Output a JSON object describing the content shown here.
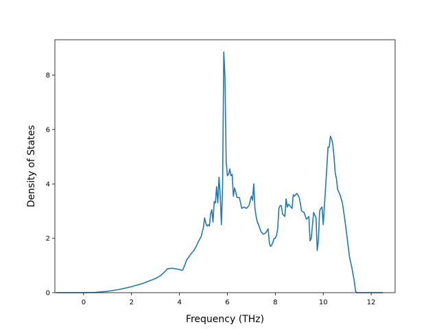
{
  "chart_data": {
    "type": "line",
    "title": "",
    "xlabel": "Frequency (THz)",
    "ylabel": "Density of States",
    "xlim": [
      -1.2,
      13.0
    ],
    "ylim": [
      0,
      9.3
    ],
    "xticks": [
      0,
      2,
      4,
      6,
      8,
      10,
      12
    ],
    "yticks": [
      0,
      2,
      4,
      6,
      8
    ],
    "grid": false,
    "legend": "none",
    "line_color": "#1f77b4",
    "series": [
      {
        "x": [
          -1.15,
          -0.5,
          0.0,
          0.5,
          1.0,
          1.5,
          2.0,
          2.5,
          3.0,
          3.2,
          3.4,
          3.5,
          3.7,
          3.9,
          4.0,
          4.1,
          4.15,
          4.3,
          4.5,
          4.6,
          4.7,
          4.75,
          4.8,
          4.9,
          5.0,
          5.05,
          5.1,
          5.15,
          5.2,
          5.25,
          5.3,
          5.35,
          5.4,
          5.45,
          5.5,
          5.55,
          5.6,
          5.65,
          5.7,
          5.75,
          5.8,
          5.85,
          5.9,
          5.95,
          6.0,
          6.05,
          6.1,
          6.15,
          6.2,
          6.25,
          6.3,
          6.35,
          6.4,
          6.5,
          6.6,
          6.7,
          6.8,
          6.9,
          7.0,
          7.05,
          7.1,
          7.15,
          7.2,
          7.25,
          7.3,
          7.4,
          7.5,
          7.6,
          7.7,
          7.75,
          7.8,
          7.85,
          7.9,
          7.95,
          8.0,
          8.05,
          8.1,
          8.15,
          8.2,
          8.25,
          8.3,
          8.4,
          8.45,
          8.5,
          8.55,
          8.6,
          8.7,
          8.75,
          8.8,
          8.9,
          9.0,
          9.1,
          9.2,
          9.3,
          9.4,
          9.45,
          9.5,
          9.6,
          9.7,
          9.75,
          9.8,
          9.85,
          9.9,
          9.95,
          10.0,
          10.05,
          10.1,
          10.15,
          10.2,
          10.25,
          10.3,
          10.35,
          10.4,
          10.45,
          10.5,
          10.55,
          10.6,
          10.65,
          10.7,
          10.8,
          10.9,
          11.0,
          11.1,
          11.2,
          11.3,
          11.35,
          11.4,
          11.45,
          11.5,
          12.0,
          12.5
        ],
        "y": [
          0,
          0,
          0,
          0.01,
          0.05,
          0.12,
          0.22,
          0.35,
          0.52,
          0.62,
          0.78,
          0.88,
          0.9,
          0.87,
          0.85,
          0.82,
          0.85,
          1.2,
          1.45,
          1.55,
          1.7,
          1.8,
          1.9,
          2.05,
          2.4,
          2.75,
          2.55,
          2.45,
          2.5,
          2.45,
          2.9,
          3.05,
          2.6,
          3.35,
          3.3,
          3.9,
          3.3,
          4.25,
          3.6,
          2.5,
          3.9,
          8.85,
          7.9,
          4.8,
          4.3,
          4.35,
          4.55,
          4.3,
          4.35,
          3.55,
          3.85,
          3.7,
          3.5,
          3.5,
          3.1,
          3.15,
          3.1,
          3.2,
          3.55,
          3.4,
          4.0,
          3.1,
          2.8,
          2.6,
          2.5,
          2.25,
          2.15,
          2.2,
          2.35,
          1.85,
          1.7,
          1.75,
          1.85,
          2.0,
          2.0,
          2.1,
          2.35,
          3.1,
          3.2,
          3.2,
          2.9,
          2.8,
          3.45,
          3.15,
          3.25,
          3.2,
          3.1,
          3.6,
          3.55,
          3.65,
          3.5,
          3.0,
          2.95,
          2.7,
          2.8,
          1.9,
          2.0,
          2.95,
          2.75,
          1.55,
          1.95,
          3.0,
          3.1,
          3.15,
          2.5,
          3.2,
          3.9,
          4.6,
          5.35,
          5.35,
          5.75,
          5.65,
          5.45,
          5.0,
          4.4,
          4.2,
          3.8,
          3.7,
          3.6,
          3.3,
          2.7,
          2.0,
          1.3,
          0.9,
          0.4,
          0.05,
          0,
          0,
          0,
          0,
          0
        ]
      }
    ]
  }
}
